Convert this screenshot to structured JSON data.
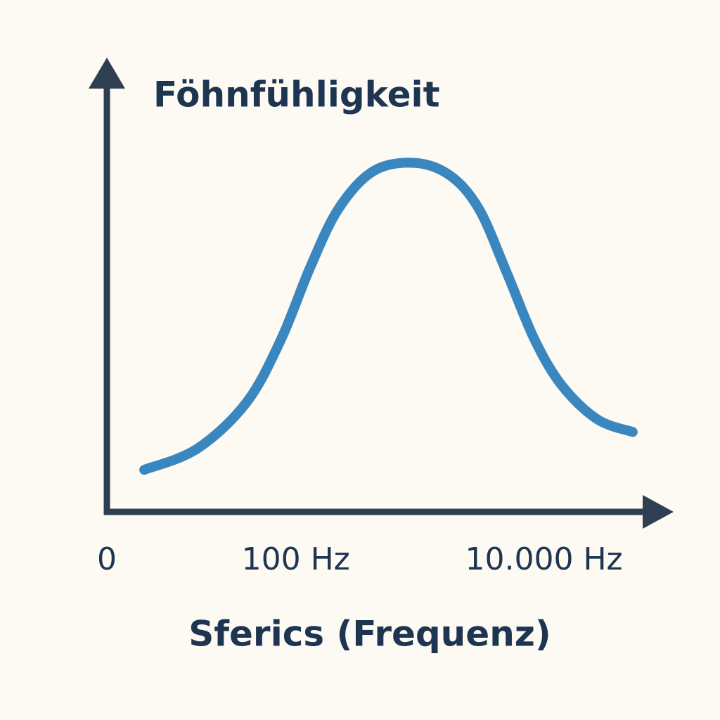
{
  "chart_data": {
    "type": "line",
    "title": "Föhnfühligkeit",
    "x_label": "Sferics (Frequenz)",
    "origin_label": "0",
    "x": [
      6,
      16,
      40,
      76,
      130,
      220,
      420,
      900,
      1750,
      3000,
      5000,
      8400,
      14000,
      27000,
      52000
    ],
    "values": [
      10,
      15,
      26,
      41,
      58,
      72,
      81,
      83,
      80,
      72,
      57,
      41,
      30,
      22,
      19
    ],
    "color": "#3a87c0",
    "xscale": "log",
    "xlim": [
      3,
      100000
    ],
    "xticks": [
      {
        "value": 100,
        "label": "100 Hz"
      },
      {
        "value": 10000,
        "label": "10.000 Hz"
      }
    ],
    "ylim": [
      0,
      100
    ],
    "grid": false
  }
}
